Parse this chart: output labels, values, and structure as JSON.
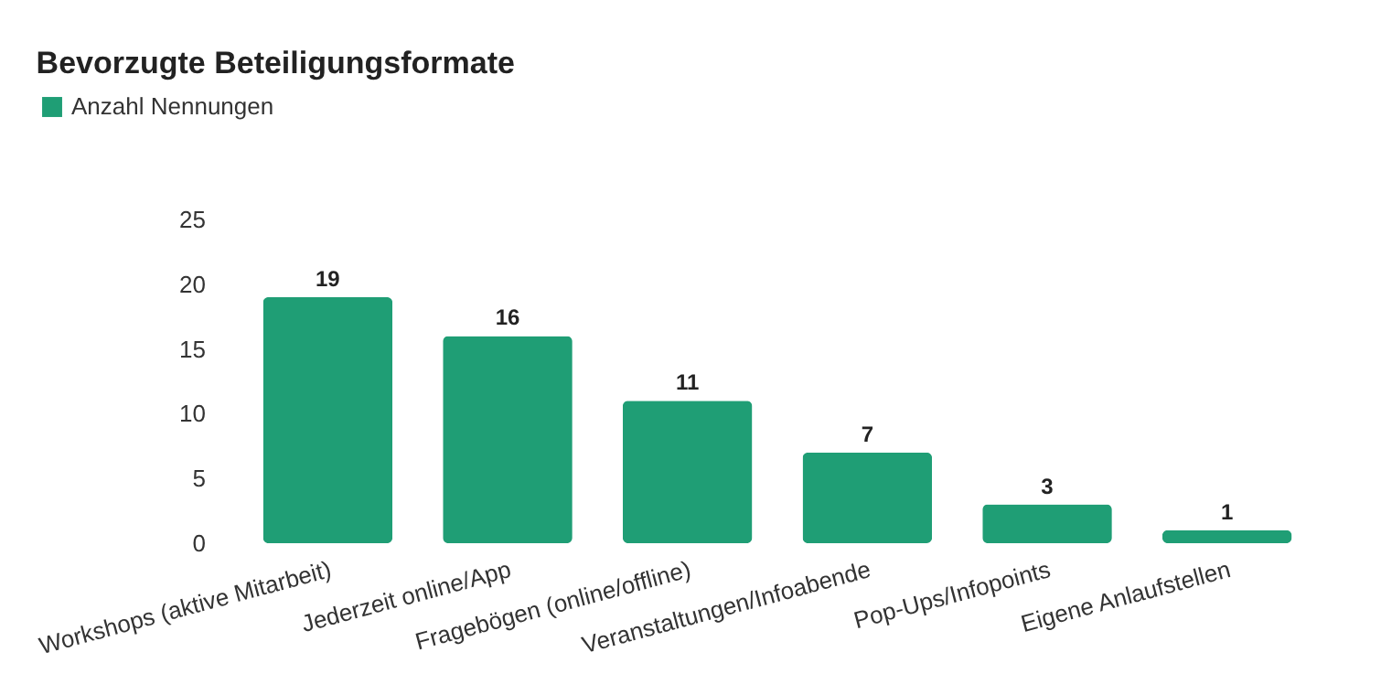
{
  "chart_data": {
    "type": "bar",
    "title": "Bevorzugte Beteiligungsformate",
    "categories": [
      "Workshops (aktive Mitarbeit)",
      "Jederzeit online/App",
      "Fragebögen (online/offline)",
      "Veranstaltungen/Infoabende",
      "Pop-Ups/Infopoints",
      "Eigene Anlaufstellen"
    ],
    "series": [
      {
        "name": "Anzahl Nennungen",
        "color": "#1f9e75",
        "values": [
          19,
          16,
          11,
          7,
          3,
          1
        ]
      }
    ],
    "ylim": [
      0,
      25
    ],
    "yticks": [
      0,
      5,
      10,
      15,
      20,
      25
    ],
    "grid": false,
    "legend": "top left",
    "data_labels": true
  }
}
